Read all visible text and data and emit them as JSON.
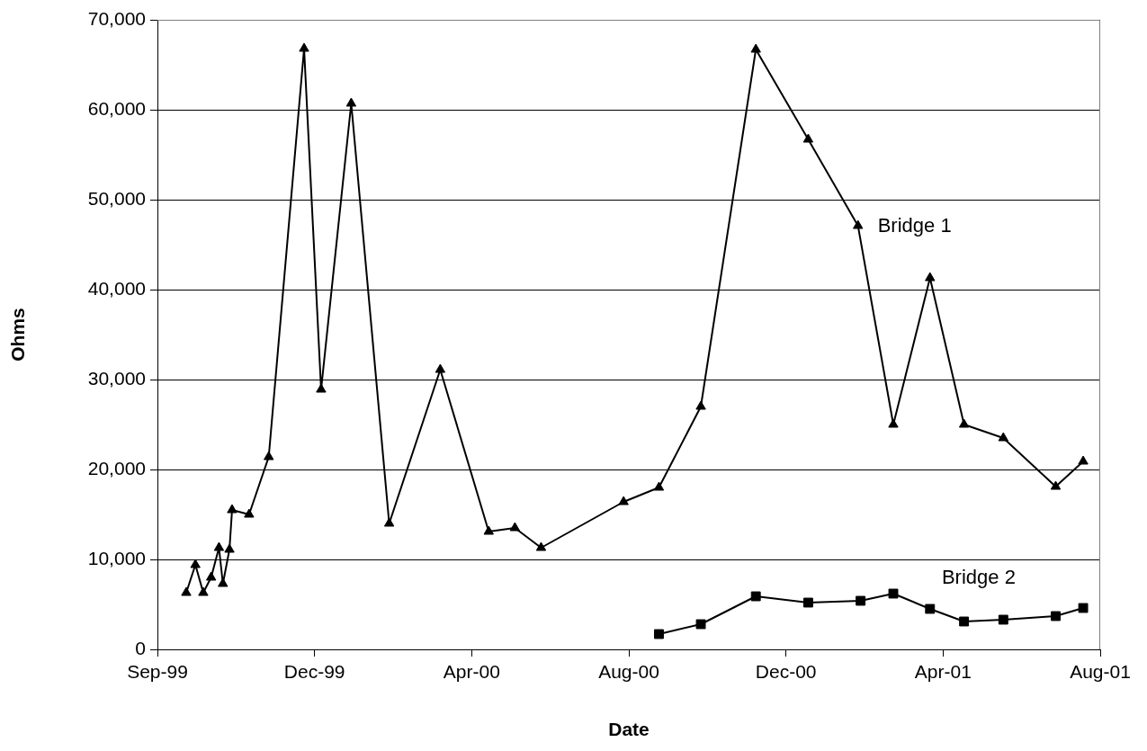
{
  "chart_data": {
    "type": "line",
    "xlabel": "Date",
    "ylabel": "Ohms",
    "xlim": [
      "1999-09-01",
      "2001-08-21"
    ],
    "xticks": [
      {
        "value": "1999-09-01",
        "label": "Sep-99"
      },
      {
        "value": "1999-12-30",
        "label": "Dec-99"
      },
      {
        "value": "2000-04-28",
        "label": "Apr-00"
      },
      {
        "value": "2000-08-26",
        "label": "Aug-00"
      },
      {
        "value": "2000-12-24",
        "label": "Dec-00"
      },
      {
        "value": "2001-04-23",
        "label": "Apr-01"
      },
      {
        "value": "2001-08-21",
        "label": "Aug-01"
      }
    ],
    "ylim": [
      0,
      70000
    ],
    "yticks": [
      0,
      {
        "value": 10000,
        "label": "10,000"
      },
      {
        "value": 20000,
        "label": "20,000"
      },
      {
        "value": 30000,
        "label": "30,000"
      },
      {
        "value": 40000,
        "label": "40,000"
      },
      {
        "value": 50000,
        "label": "50,000"
      },
      {
        "value": 60000,
        "label": "60,000"
      },
      {
        "value": 70000,
        "label": "70,000"
      }
    ],
    "grid": "y",
    "series": [
      {
        "name": "Bridge 1",
        "color": "#000000",
        "marker": "triangle",
        "x": [
          "1999-09-23",
          "1999-09-30",
          "1999-10-06",
          "1999-10-12",
          "1999-10-18",
          "1999-10-21",
          "1999-10-26",
          "1999-10-28",
          "1999-11-10",
          "1999-11-25",
          "1999-12-22",
          "2000-01-04",
          "2000-01-27",
          "2000-02-25",
          "2000-04-04",
          "2000-05-11",
          "2000-05-31",
          "2000-06-20",
          "2000-08-22",
          "2000-09-18",
          "2000-10-20",
          "2000-12-01",
          "2001-01-10",
          "2001-02-17",
          "2001-03-16",
          "2001-04-13",
          "2001-05-09",
          "2001-06-08",
          "2001-07-18",
          "2001-08-08"
        ],
        "values": [
          6300,
          9400,
          6300,
          8000,
          11300,
          7300,
          11100,
          15500,
          15000,
          21400,
          66800,
          28900,
          60700,
          14000,
          31100,
          13100,
          13500,
          11300,
          16400,
          18000,
          27000,
          66700,
          56700,
          47100,
          25000,
          41300,
          25000,
          23500,
          18100,
          20900
        ]
      },
      {
        "name": "Bridge 2",
        "color": "#000000",
        "marker": "square",
        "x": [
          "2000-09-18",
          "2000-10-20",
          "2000-12-01",
          "2001-01-10",
          "2001-02-19",
          "2001-03-16",
          "2001-04-13",
          "2001-05-09",
          "2001-06-08",
          "2001-07-18",
          "2001-08-08"
        ],
        "values": [
          1700,
          2800,
          5900,
          5200,
          5400,
          6200,
          4500,
          3100,
          3300,
          3700,
          4600
        ]
      }
    ]
  }
}
